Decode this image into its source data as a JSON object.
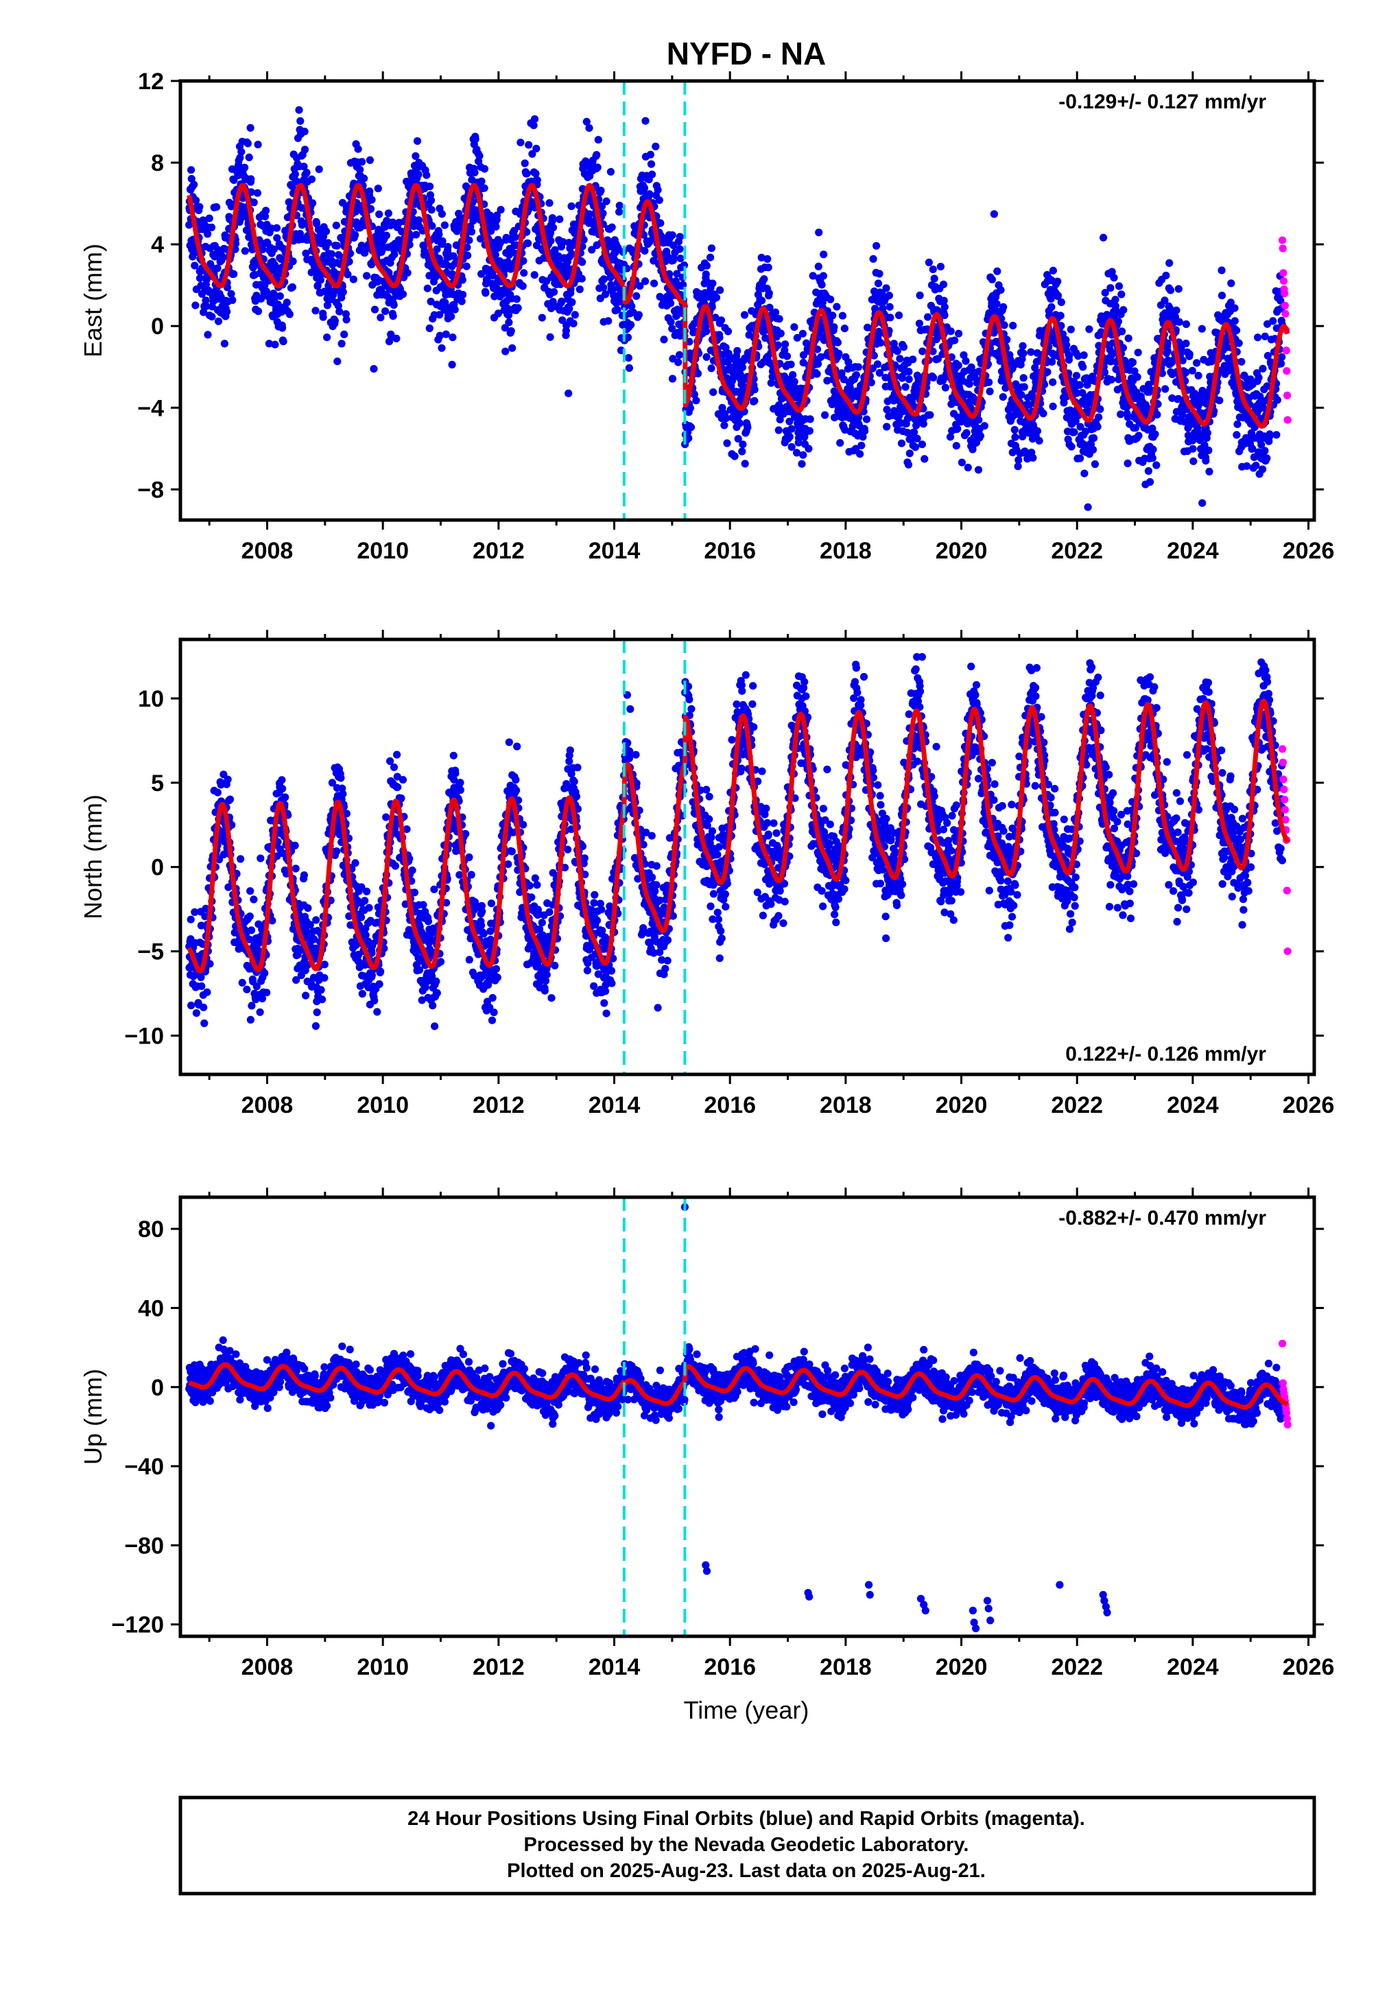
{
  "title": "NYFD - NA",
  "xlabel": "Time (year)",
  "footer": {
    "line1": "24 Hour Positions Using Final Orbits (blue) and Rapid Orbits (magenta).",
    "line2": "Processed by the Nevada Geodetic Laboratory.",
    "line3": "Plotted on 2025-Aug-23. Last data on 2025-Aug-21."
  },
  "colors": {
    "final_orbits": "#0000ee",
    "rapid_orbits": "#ff00ff",
    "model_fit": "#ee0000",
    "offset_lines": "#00dddd",
    "axes": "#000000"
  },
  "chart_data": [
    {
      "type": "scatter",
      "panel": "east",
      "ylabel": "East (mm)",
      "ylim": [
        -9.5,
        12
      ],
      "yticks": [
        -8,
        -4,
        0,
        4,
        8,
        12
      ],
      "xlim": [
        2006.5,
        2026.1
      ],
      "xticks": [
        2008,
        2010,
        2012,
        2014,
        2016,
        2018,
        2020,
        2022,
        2024,
        2026
      ],
      "rate": "-0.129+/- 0.127 mm/yr",
      "rate_position": "top-right",
      "offsets": [
        2014.17,
        2015.22
      ],
      "data_start": 2006.65,
      "data_end": 2025.55,
      "rapid_start": 2025.55,
      "rapid_end": 2025.64,
      "seasonal_amplitude": 2.3,
      "seasonal_phase_year": 2006.6,
      "noise_sd": 1.4,
      "series": [
        {
          "x": [
            2006.65,
            2014.17
          ],
          "level": [
            4.0,
            4.0
          ]
        },
        {
          "x": [
            2014.17,
            2015.22
          ],
          "level": [
            3.2,
            3.2
          ]
        },
        {
          "x": [
            2015.22,
            2025.55
          ],
          "level": [
            -1.9,
            -2.9
          ]
        }
      ],
      "rapid_values": [
        4.2,
        3.8,
        2.6,
        2.2,
        1.8,
        1.6,
        1.0,
        0.6,
        -0.2,
        -1.2,
        -2.2,
        -3.4,
        -4.6
      ]
    },
    {
      "type": "scatter",
      "panel": "north",
      "ylabel": "North (mm)",
      "ylim": [
        -12.3,
        13.5
      ],
      "yticks": [
        -10,
        -5,
        0,
        5,
        10
      ],
      "xlim": [
        2006.5,
        2026.1
      ],
      "xticks": [
        2008,
        2010,
        2012,
        2014,
        2016,
        2018,
        2020,
        2022,
        2024,
        2026
      ],
      "rate": "0.122+/- 0.126 mm/yr",
      "rate_position": "bottom-right",
      "offsets": [
        2014.17,
        2015.22
      ],
      "data_start": 2006.65,
      "data_end": 2025.55,
      "rapid_start": 2025.55,
      "rapid_end": 2025.64,
      "seasonal_amplitude": 4.6,
      "seasonal_phase_year": 2007.25,
      "noise_sd": 1.5,
      "series": [
        {
          "x": [
            2006.65,
            2014.17
          ],
          "level": [
            -2.1,
            -1.6
          ]
        },
        {
          "x": [
            2014.17,
            2015.22
          ],
          "level": [
            0.3,
            0.3
          ]
        },
        {
          "x": [
            2015.22,
            2025.55
          ],
          "level": [
            3.1,
            4.1
          ]
        }
      ],
      "rapid_values": [
        7.0,
        6.2,
        5.2,
        4.6,
        4.0,
        3.4,
        2.8,
        2.2,
        1.6,
        -1.4,
        -5.0
      ]
    },
    {
      "type": "scatter",
      "panel": "up",
      "ylabel": "Up (mm)",
      "ylim": [
        -126,
        96
      ],
      "yticks": [
        -120,
        -80,
        -40,
        0,
        40,
        80
      ],
      "xlim": [
        2006.5,
        2026.1
      ],
      "xticks": [
        2008,
        2010,
        2012,
        2014,
        2016,
        2018,
        2020,
        2022,
        2024,
        2026
      ],
      "rate": "-0.882+/- 0.470 mm/yr",
      "rate_position": "top-right",
      "offsets": [
        2014.17,
        2015.22
      ],
      "data_start": 2006.65,
      "data_end": 2025.55,
      "rapid_start": 2025.55,
      "rapid_end": 2025.64,
      "seasonal_amplitude": 5.5,
      "seasonal_phase_year": 2007.3,
      "noise_sd": 4.5,
      "series": [
        {
          "x": [
            2006.65,
            2014.17
          ],
          "level": [
            5.0,
            -1.5
          ]
        },
        {
          "x": [
            2014.17,
            2015.22
          ],
          "level": [
            -3.5,
            -3.5
          ]
        },
        {
          "x": [
            2015.22,
            2025.55
          ],
          "level": [
            3.5,
            -6.0
          ]
        }
      ],
      "outliers": [
        {
          "x": 2015.22,
          "y": 91
        },
        {
          "x": 2015.58,
          "y": -90
        },
        {
          "x": 2015.6,
          "y": -93
        },
        {
          "x": 2017.35,
          "y": -104
        },
        {
          "x": 2017.37,
          "y": -106
        },
        {
          "x": 2018.4,
          "y": -100
        },
        {
          "x": 2018.42,
          "y": -105
        },
        {
          "x": 2019.3,
          "y": -107
        },
        {
          "x": 2019.35,
          "y": -110
        },
        {
          "x": 2019.38,
          "y": -113
        },
        {
          "x": 2020.2,
          "y": -113
        },
        {
          "x": 2020.22,
          "y": -119
        },
        {
          "x": 2020.25,
          "y": -122
        },
        {
          "x": 2020.45,
          "y": -108
        },
        {
          "x": 2020.47,
          "y": -112
        },
        {
          "x": 2020.5,
          "y": -118
        },
        {
          "x": 2021.7,
          "y": -100
        },
        {
          "x": 2022.45,
          "y": -105
        },
        {
          "x": 2022.47,
          "y": -108
        },
        {
          "x": 2022.5,
          "y": -111
        },
        {
          "x": 2022.52,
          "y": -114
        }
      ],
      "rapid_values": [
        22,
        2,
        -1,
        -3,
        -5,
        -7,
        -9,
        -11,
        -13,
        -16,
        -19
      ]
    }
  ]
}
